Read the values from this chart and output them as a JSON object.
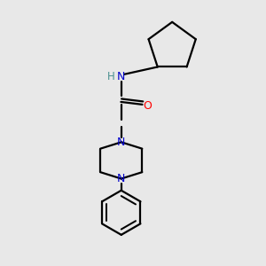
{
  "bg_color": "#e8e8e8",
  "bond_color": "#000000",
  "N_color": "#0000cc",
  "O_color": "#ff0000",
  "H_color": "#4a9090",
  "line_width": 1.6,
  "figsize": [
    3.0,
    3.0
  ],
  "dpi": 100,
  "xlim": [
    0,
    10
  ],
  "ylim": [
    0,
    10
  ]
}
